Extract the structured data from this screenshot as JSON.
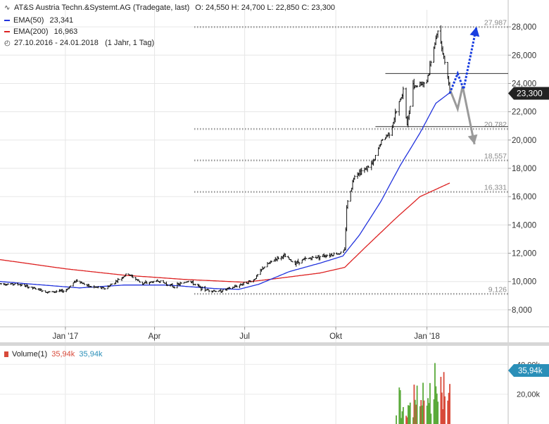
{
  "header": {
    "instrument": "AT&S Austria Techn.&Systemt.AG (Tradegate, last)",
    "ohlc": "O: 24,550  H: 24,700  L: 22,850  C: 23,300",
    "ema50_label": "EMA(50)",
    "ema50_value": "23,341",
    "ema200_label": "EMA(200)",
    "ema200_value": "16,963",
    "period": "27.10.2016 - 24.01.2018",
    "period_note": "(1 Jahr, 1 Tag)",
    "volume_label": "Volume(1)",
    "volume_value_1": "35,94k",
    "volume_value_2": "35,94k"
  },
  "colors": {
    "ema50": "#2233dd",
    "ema200": "#dd2222",
    "price": "#111111",
    "current_tag": "#222222",
    "volume_tag": "#2a8fb8",
    "volume_up": "#5aaa3a",
    "volume_down": "#d84a3a",
    "arrow_up": "#1a3fe0",
    "arrow_down": "#9a9a9a"
  },
  "chart_data": {
    "type": "candlestick",
    "price_axis": {
      "range": [
        6800,
        29200
      ],
      "ticks": [
        8000,
        10000,
        12000,
        14000,
        16000,
        18000,
        20000,
        22000,
        24000,
        26000,
        28000
      ],
      "tick_labels": [
        "8,000",
        "10,000",
        "12,000",
        "14,000",
        "16,000",
        "18,000",
        "20,000",
        "22,000",
        "24,000",
        "26,000",
        "28,000"
      ]
    },
    "x_axis": {
      "start": "2016-10-27",
      "end": "2018-01-24",
      "view_end": "2018-03-24",
      "ticks": [
        {
          "date": "2017-01-01",
          "label": "Jan '17"
        },
        {
          "date": "2017-04-01",
          "label": "Apr"
        },
        {
          "date": "2017-07-01",
          "label": "Jul"
        },
        {
          "date": "2017-10-01",
          "label": "Okt"
        },
        {
          "date": "2018-01-01",
          "label": "Jan '18"
        }
      ]
    },
    "current_price": {
      "value": 23300,
      "label": "23,300"
    },
    "levels": [
      {
        "value": 27987,
        "label": "27,987",
        "style": "dotted"
      },
      {
        "value": 20782,
        "label": "20,782",
        "style": "dotted"
      },
      {
        "value": 18557,
        "label": "18,557",
        "style": "dotted"
      },
      {
        "value": 16331,
        "label": "16,331",
        "style": "dotted"
      },
      {
        "value": 9126,
        "label": "9,126",
        "style": "dotted"
      }
    ],
    "horizontal_lines": [
      {
        "value": 24700,
        "from": "2017-11-20",
        "to": "2018-03-24"
      },
      {
        "value": 20950,
        "from": "2017-11-10",
        "to": "2018-03-24"
      }
    ],
    "price_path": [
      {
        "date": "2016-10-27",
        "value": 9850
      },
      {
        "date": "2016-11-15",
        "value": 9800
      },
      {
        "date": "2016-12-01",
        "value": 9500
      },
      {
        "date": "2016-12-15",
        "value": 9250
      },
      {
        "date": "2017-01-01",
        "value": 9350
      },
      {
        "date": "2017-01-12",
        "value": 10100
      },
      {
        "date": "2017-01-25",
        "value": 9650
      },
      {
        "date": "2017-02-10",
        "value": 9500
      },
      {
        "date": "2017-02-25",
        "value": 10200
      },
      {
        "date": "2017-03-05",
        "value": 10550
      },
      {
        "date": "2017-03-20",
        "value": 9850
      },
      {
        "date": "2017-04-05",
        "value": 10050
      },
      {
        "date": "2017-04-20",
        "value": 9650
      },
      {
        "date": "2017-05-05",
        "value": 10050
      },
      {
        "date": "2017-05-20",
        "value": 9450
      },
      {
        "date": "2017-06-05",
        "value": 9300
      },
      {
        "date": "2017-06-20",
        "value": 9600
      },
      {
        "date": "2017-07-01",
        "value": 9900
      },
      {
        "date": "2017-07-10",
        "value": 10100
      },
      {
        "date": "2017-07-20",
        "value": 11000
      },
      {
        "date": "2017-08-01",
        "value": 11600
      },
      {
        "date": "2017-08-10",
        "value": 11800
      },
      {
        "date": "2017-08-20",
        "value": 11300
      },
      {
        "date": "2017-09-01",
        "value": 11600
      },
      {
        "date": "2017-09-20",
        "value": 11850
      },
      {
        "date": "2017-10-05",
        "value": 12000
      },
      {
        "date": "2017-10-10",
        "value": 12200
      },
      {
        "date": "2017-10-12",
        "value": 15300
      },
      {
        "date": "2017-10-20",
        "value": 17600
      },
      {
        "date": "2017-10-30",
        "value": 17900
      },
      {
        "date": "2017-11-08",
        "value": 18400
      },
      {
        "date": "2017-11-15",
        "value": 19800
      },
      {
        "date": "2017-11-25",
        "value": 20600
      },
      {
        "date": "2017-12-01",
        "value": 22000
      },
      {
        "date": "2017-12-08",
        "value": 23500
      },
      {
        "date": "2017-12-12",
        "value": 21000
      },
      {
        "date": "2017-12-18",
        "value": 23800
      },
      {
        "date": "2017-12-26",
        "value": 24000
      },
      {
        "date": "2018-01-01",
        "value": 24200
      },
      {
        "date": "2018-01-08",
        "value": 26500
      },
      {
        "date": "2018-01-12",
        "value": 27800
      },
      {
        "date": "2018-01-16",
        "value": 26600
      },
      {
        "date": "2018-01-20",
        "value": 25400
      },
      {
        "date": "2018-01-24",
        "value": 23300
      }
    ],
    "ema50": [
      {
        "date": "2016-10-27",
        "value": 10000
      },
      {
        "date": "2016-12-01",
        "value": 9800
      },
      {
        "date": "2017-01-15",
        "value": 9550
      },
      {
        "date": "2017-03-01",
        "value": 9750
      },
      {
        "date": "2017-04-15",
        "value": 9750
      },
      {
        "date": "2017-06-01",
        "value": 9500
      },
      {
        "date": "2017-06-25",
        "value": 9450
      },
      {
        "date": "2017-07-15",
        "value": 9800
      },
      {
        "date": "2017-08-15",
        "value": 10700
      },
      {
        "date": "2017-09-15",
        "value": 11300
      },
      {
        "date": "2017-10-08",
        "value": 11800
      },
      {
        "date": "2017-10-25",
        "value": 13300
      },
      {
        "date": "2017-11-15",
        "value": 15600
      },
      {
        "date": "2017-12-05",
        "value": 18200
      },
      {
        "date": "2017-12-25",
        "value": 20500
      },
      {
        "date": "2018-01-10",
        "value": 22600
      },
      {
        "date": "2018-01-24",
        "value": 23341
      }
    ],
    "ema200": [
      {
        "date": "2016-10-27",
        "value": 11550
      },
      {
        "date": "2017-01-01",
        "value": 10900
      },
      {
        "date": "2017-03-01",
        "value": 10450
      },
      {
        "date": "2017-05-01",
        "value": 10150
      },
      {
        "date": "2017-07-01",
        "value": 9950
      },
      {
        "date": "2017-08-01",
        "value": 10200
      },
      {
        "date": "2017-09-15",
        "value": 10600
      },
      {
        "date": "2017-10-10",
        "value": 11000
      },
      {
        "date": "2017-11-01",
        "value": 12500
      },
      {
        "date": "2017-12-01",
        "value": 14500
      },
      {
        "date": "2017-12-25",
        "value": 16000
      },
      {
        "date": "2018-01-24",
        "value": 16963
      }
    ],
    "forecast": {
      "up": [
        {
          "date": "2018-01-24",
          "value": 23300
        },
        {
          "date": "2018-02-01",
          "value": 24700
        },
        {
          "date": "2018-02-07",
          "value": 23600
        },
        {
          "date": "2018-02-20",
          "value": 28000
        }
      ],
      "down": [
        {
          "date": "2018-01-24",
          "value": 23600
        },
        {
          "date": "2018-02-01",
          "value": 22200
        },
        {
          "date": "2018-02-06",
          "value": 23800
        },
        {
          "date": "2018-02-18",
          "value": 19700
        }
      ]
    },
    "volume": {
      "axis": {
        "ticks": [
          20000,
          40000
        ],
        "tick_labels": [
          "20,00k",
          "40,00k"
        ]
      },
      "current": {
        "value": 35940,
        "label": "35,94k"
      }
    }
  }
}
